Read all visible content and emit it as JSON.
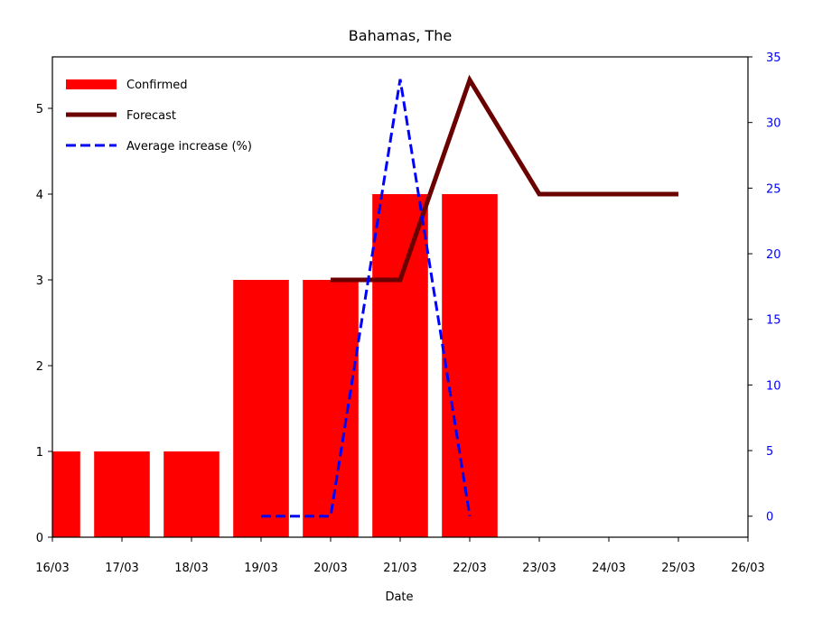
{
  "chart_data": {
    "type": "bar",
    "title": "Bahamas, The",
    "xlabel": "Date",
    "ylabel": "",
    "ylabel_right": "",
    "x_ticks": [
      "16/03",
      "17/03",
      "18/03",
      "19/03",
      "20/03",
      "21/03",
      "22/03",
      "23/03",
      "24/03",
      "25/03",
      "26/03"
    ],
    "xlim": [
      "16/03",
      "26/03"
    ],
    "ylim": [
      0,
      5.6
    ],
    "y_ticks": [
      0,
      1,
      2,
      3,
      4,
      5
    ],
    "ylim_right": [
      -1.6,
      35
    ],
    "y_ticks_right": [
      0,
      5,
      10,
      15,
      20,
      25,
      30,
      35
    ],
    "grid": false,
    "legend_position": "top-left",
    "series": [
      {
        "name": "Confirmed",
        "kind": "bar",
        "axis": "left",
        "color": "#ff0000",
        "x": [
          "16/03",
          "17/03",
          "18/03",
          "19/03",
          "20/03",
          "21/03",
          "22/03"
        ],
        "values": [
          1,
          1,
          1,
          3,
          3,
          4,
          4
        ]
      },
      {
        "name": "Forecast",
        "kind": "line",
        "axis": "left",
        "color": "#6b0000",
        "style": "solid",
        "x": [
          "20/03",
          "21/03",
          "22/03",
          "23/03",
          "24/03",
          "25/03"
        ],
        "values": [
          3,
          3,
          5.33,
          4,
          4,
          4
        ]
      },
      {
        "name": "Average increase (%)",
        "kind": "line",
        "axis": "right",
        "color": "#0000ff",
        "style": "dashed",
        "x": [
          "19/03",
          "20/03",
          "21/03",
          "22/03"
        ],
        "values": [
          0,
          0,
          33.3,
          0
        ]
      }
    ]
  }
}
